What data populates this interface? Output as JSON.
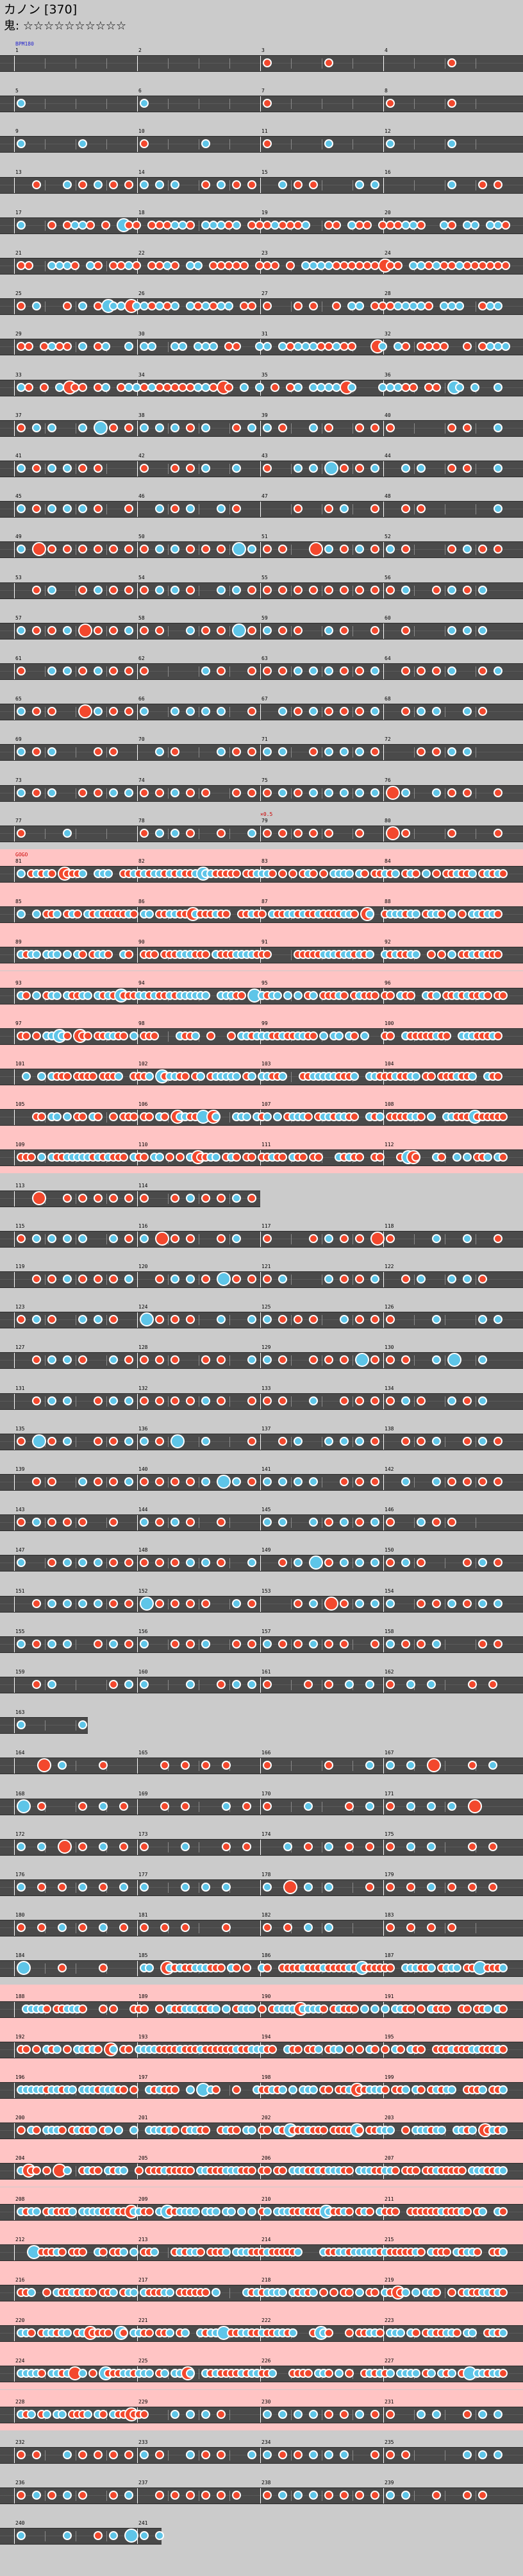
{
  "title": "カノン [370]",
  "rating": {
    "label": "鬼:",
    "stars": "☆☆☆☆☆☆☆☆☆☆"
  },
  "commands": {
    "bpm_start": "BPM180",
    "gogo_start": "GOGO",
    "tempo_mark": "×0.5"
  },
  "colors": {
    "background": "#cbcbcb",
    "lane": "#4a4a4a",
    "gogo": "#ffc4c4",
    "don": "#f3482d",
    "ka": "#5ec5e8",
    "bpm_text": "#2222cc",
    "gogo_text": "#cc0000"
  },
  "chart": {
    "measures_per_row": 4,
    "total_measures": 230,
    "gogo_sections": [
      [
        81,
        112
      ],
      [
        185,
        228
      ]
    ],
    "short_rows": [
      {
        "measure": 113,
        "length": 2
      },
      {
        "measure": 166,
        "length": 0.6
      },
      {
        "measure": 229,
        "length": 1.2
      }
    ]
  }
}
